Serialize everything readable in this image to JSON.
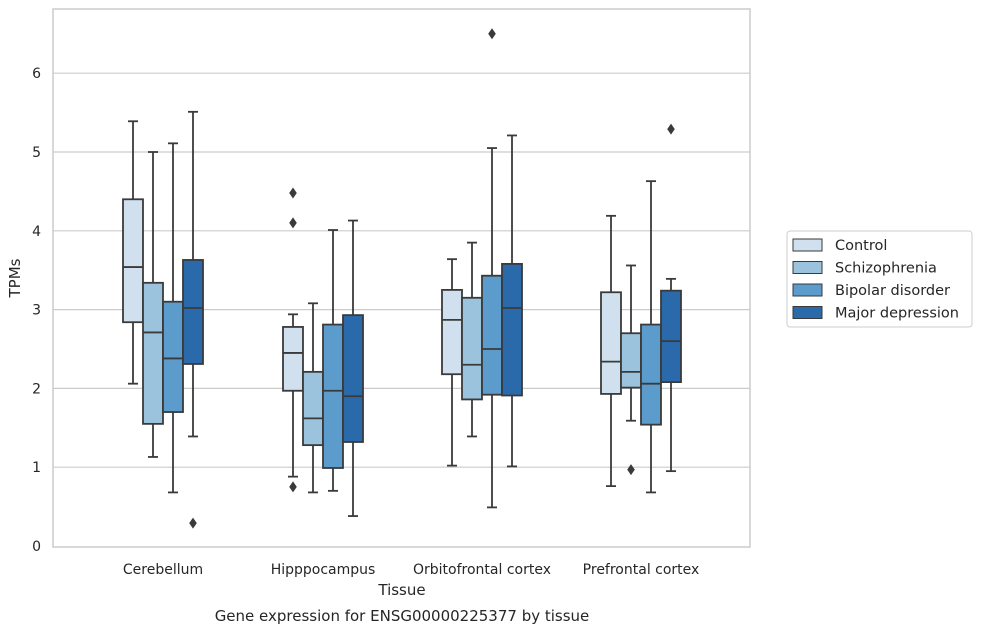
{
  "chart_data": {
    "type": "boxplot",
    "title": "",
    "caption": "Gene expression for ENSG00000225377 by tissue",
    "xlabel": "Tissue",
    "ylabel": "TPMs",
    "ylim": [
      0,
      6.85
    ],
    "yticks": [
      "0",
      "1",
      "2",
      "3",
      "4",
      "5",
      "6"
    ],
    "categories": [
      "Cerebellum",
      "Hipppocampus",
      "Orbitofrontal cortex",
      "Prefrontal cortex"
    ],
    "grid": true,
    "legend_position": "right",
    "series": [
      {
        "name": "Control",
        "color": "#d0e0ef",
        "boxes": [
          {
            "whisker_low": 2.06,
            "q1": 2.84,
            "median": 3.54,
            "q3": 4.4,
            "whisker_high": 5.39,
            "outliers": []
          },
          {
            "whisker_low": 0.88,
            "q1": 1.97,
            "median": 2.45,
            "q3": 2.78,
            "whisker_high": 2.94,
            "outliers": [
              0.75,
              4.1,
              4.48
            ]
          },
          {
            "whisker_low": 1.02,
            "q1": 2.18,
            "median": 2.87,
            "q3": 3.25,
            "whisker_high": 3.64,
            "outliers": []
          },
          {
            "whisker_low": 0.76,
            "q1": 1.93,
            "median": 2.34,
            "q3": 3.22,
            "whisker_high": 4.19,
            "outliers": []
          }
        ]
      },
      {
        "name": "Schizophrenia",
        "color": "#9cc3dd",
        "boxes": [
          {
            "whisker_low": 1.13,
            "q1": 1.55,
            "median": 2.71,
            "q3": 3.34,
            "whisker_high": 5.0,
            "outliers": []
          },
          {
            "whisker_low": 0.68,
            "q1": 1.28,
            "median": 1.62,
            "q3": 2.21,
            "whisker_high": 3.08,
            "outliers": []
          },
          {
            "whisker_low": 1.39,
            "q1": 1.86,
            "median": 2.3,
            "q3": 3.15,
            "whisker_high": 3.85,
            "outliers": []
          },
          {
            "whisker_low": 1.59,
            "q1": 2.01,
            "median": 2.21,
            "q3": 2.7,
            "whisker_high": 3.56,
            "outliers": [
              0.97
            ]
          }
        ]
      },
      {
        "name": "Bipolar disorder",
        "color": "#5c9ccc",
        "boxes": [
          {
            "whisker_low": 0.68,
            "q1": 1.7,
            "median": 2.38,
            "q3": 3.1,
            "whisker_high": 5.11,
            "outliers": []
          },
          {
            "whisker_low": 0.7,
            "q1": 0.99,
            "median": 1.97,
            "q3": 2.81,
            "whisker_high": 4.01,
            "outliers": []
          },
          {
            "whisker_low": 0.49,
            "q1": 1.92,
            "median": 2.5,
            "q3": 3.43,
            "whisker_high": 5.05,
            "outliers": [
              6.5
            ]
          },
          {
            "whisker_low": 0.68,
            "q1": 1.54,
            "median": 2.06,
            "q3": 2.81,
            "whisker_high": 4.63,
            "outliers": []
          }
        ]
      },
      {
        "name": "Major depression",
        "color": "#2a6aab",
        "boxes": [
          {
            "whisker_low": 1.39,
            "q1": 2.31,
            "median": 3.02,
            "q3": 3.63,
            "whisker_high": 5.51,
            "outliers": [
              0.29
            ]
          },
          {
            "whisker_low": 0.38,
            "q1": 1.32,
            "median": 1.9,
            "q3": 2.93,
            "whisker_high": 4.13,
            "outliers": []
          },
          {
            "whisker_low": 1.01,
            "q1": 1.91,
            "median": 3.02,
            "q3": 3.58,
            "whisker_high": 5.21,
            "outliers": []
          },
          {
            "whisker_low": 0.95,
            "q1": 2.08,
            "median": 2.6,
            "q3": 3.24,
            "whisker_high": 3.39,
            "outliers": [
              5.29
            ]
          }
        ]
      }
    ]
  }
}
